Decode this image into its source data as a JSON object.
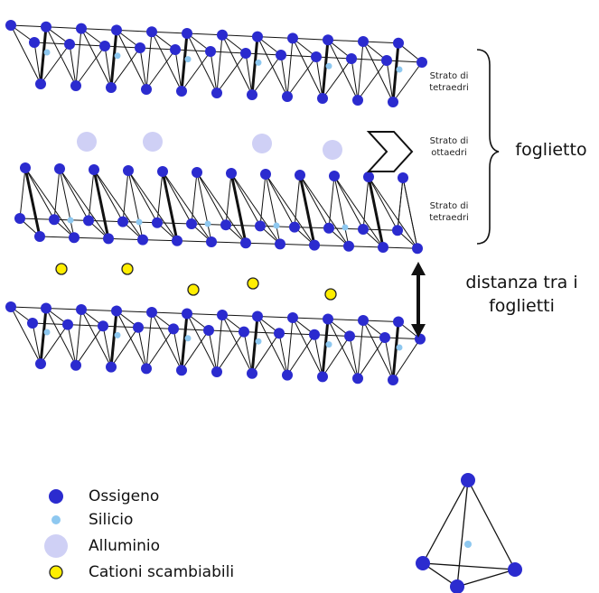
{
  "labels": {
    "strato_top": "Strato di\ntetraedri",
    "strato_mid": "Strato di\nottaedri",
    "strato_bot": "Strato di\ntetraedri",
    "foglietto": "foglietto",
    "distanza": "distanza tra i\nfoglietti"
  },
  "legend": [
    {
      "label": "Ossigeno",
      "symbol": "oxygen-dot"
    },
    {
      "label": "Silicio",
      "symbol": "silicon-dot"
    },
    {
      "label": "Alluminio",
      "symbol": "aluminium-dot"
    },
    {
      "label": "Cationi scambiabili",
      "symbol": "cation-dot"
    }
  ],
  "colors": {
    "oxygen": "#2b2bcf",
    "silicon": "#8ec8f0",
    "aluminium": "#cfd0f5",
    "cation": "#ffee00",
    "line": "#111111"
  }
}
